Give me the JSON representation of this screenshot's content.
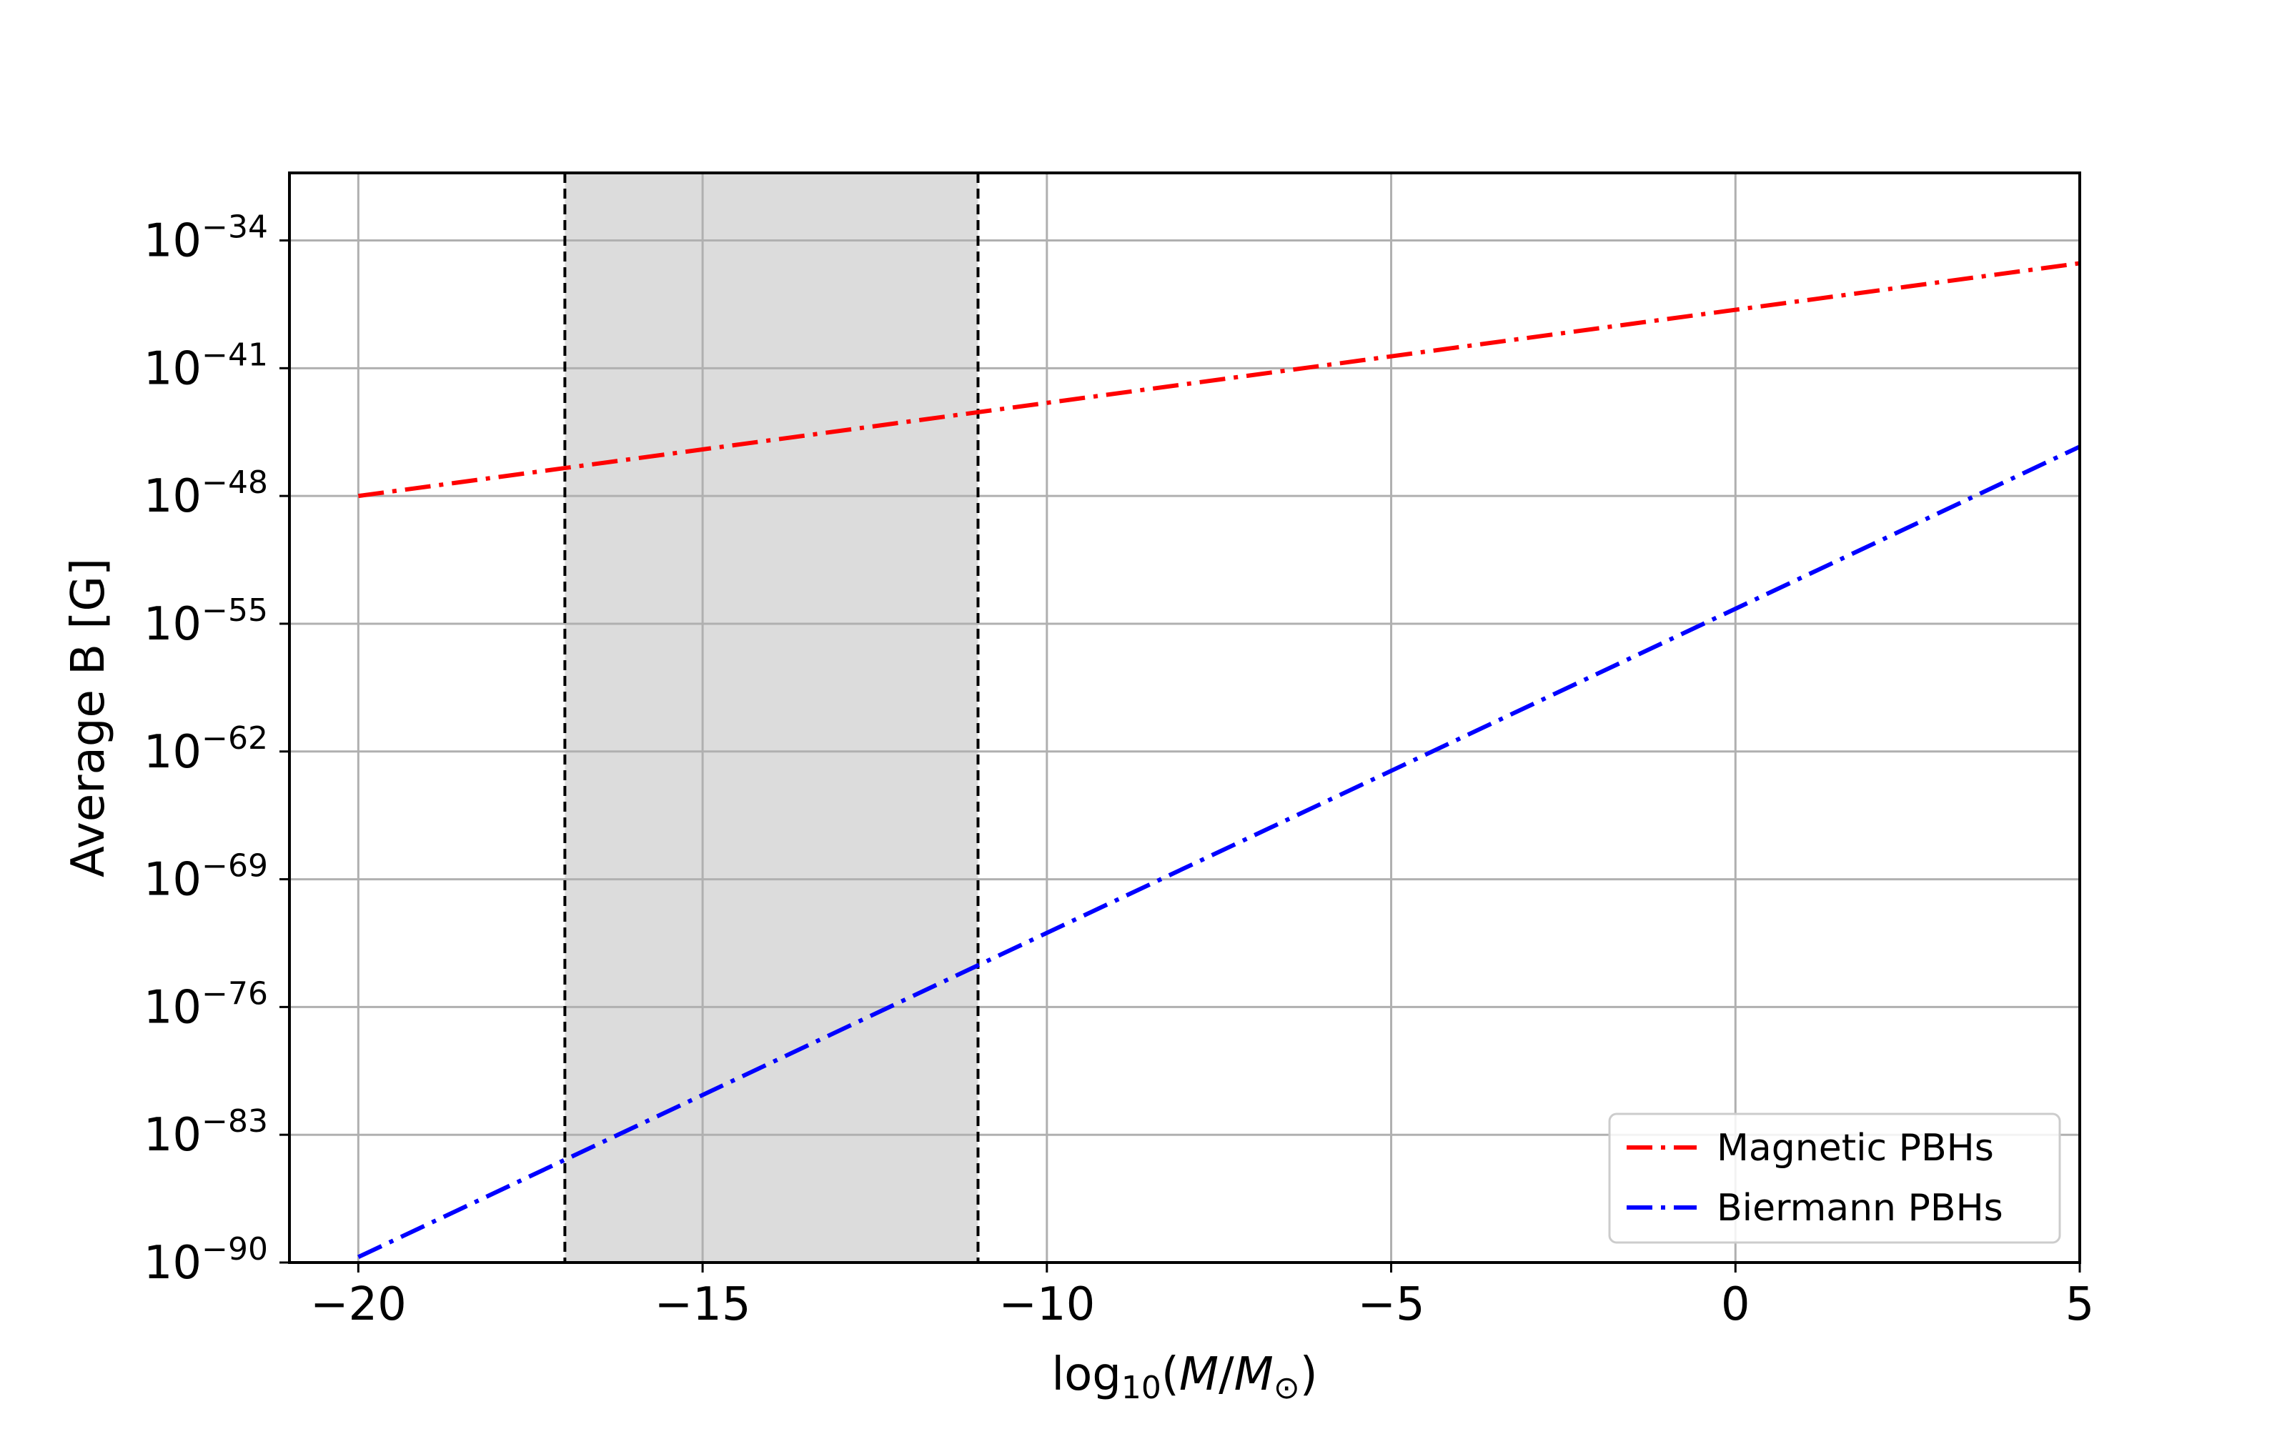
{
  "chart_data": {
    "type": "line",
    "xlabel": {
      "pre": "log",
      "sub": "10",
      "mid": "(",
      "italic_num": "M",
      "slash": "/",
      "italic_den": "M",
      "den_sub": "⊙",
      "post": ")"
    },
    "ylabel": "Average B [G]",
    "xlim": [
      -21,
      5
    ],
    "ylim_log10": [
      -90,
      -30.3
    ],
    "y_scale": "log",
    "x_ticks": [
      -20,
      -15,
      -10,
      -5,
      0,
      5
    ],
    "x_tick_labels": [
      "−20",
      "−15",
      "−10",
      "−5",
      "0",
      "5"
    ],
    "y_tick_exponents": [
      -34,
      -41,
      -48,
      -55,
      -62,
      -69,
      -76,
      -83,
      -90
    ],
    "y_tick_labels": [
      "−34",
      "−41",
      "−48",
      "−55",
      "−62",
      "−69",
      "−76",
      "−83",
      "−90"
    ],
    "y_tick_base": "10",
    "grid": true,
    "legend_position": "lower right",
    "shaded_region": {
      "x": [
        -17,
        -11
      ],
      "color": "#dcdcdc"
    },
    "vertical_lines": [
      -17,
      -11
    ],
    "series": [
      {
        "name": "Magnetic PBHs",
        "color": "#ff0000",
        "style": "dashdot",
        "x": [
          -20,
          5
        ],
        "log10_y": [
          -48,
          -35.25
        ]
      },
      {
        "name": "Biermann PBHs",
        "color": "#0000ff",
        "style": "dashdot",
        "x": [
          -20,
          5
        ],
        "log10_y": [
          -89.7,
          -45.3
        ]
      }
    ]
  }
}
